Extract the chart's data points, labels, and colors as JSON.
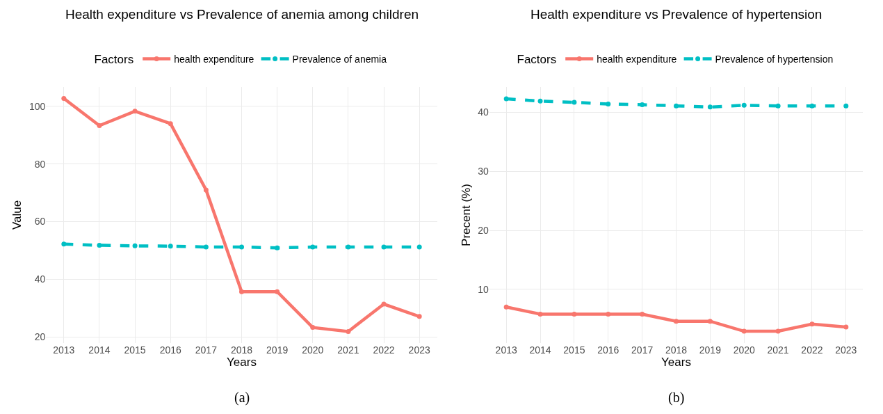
{
  "chart_data": [
    {
      "type": "line",
      "title": "Health expenditure vs Prevalence of anemia among children",
      "xlabel": "Years",
      "ylabel": "Value",
      "legend_title": "Factors",
      "legend": "top",
      "x": [
        2013,
        2014,
        2015,
        2016,
        2017,
        2018,
        2019,
        2020,
        2021,
        2022,
        2023
      ],
      "xlim": [
        2012.5,
        2023.5
      ],
      "xticks": [
        2013,
        2014,
        2015,
        2016,
        2017,
        2018,
        2019,
        2020,
        2021,
        2022,
        2023
      ],
      "ylim": [
        17.9,
        106.7
      ],
      "yticks": [
        20,
        40,
        60,
        80,
        100
      ],
      "grid": true,
      "marker": "circle",
      "series": [
        {
          "name": "health expenditure",
          "color": "#f8766d",
          "line_style": "solid",
          "values": [
            102.7,
            93.3,
            98.3,
            94.0,
            71.0,
            35.7,
            35.7,
            23.3,
            21.9,
            31.4,
            27.1
          ]
        },
        {
          "name": "Prevalence of anemia",
          "color": "#00bfc4",
          "line_style": "dashed",
          "values": [
            52.2,
            51.8,
            51.6,
            51.5,
            51.2,
            51.2,
            50.9,
            51.2,
            51.2,
            51.2,
            51.2
          ]
        }
      ],
      "annotations": [
        "(a)"
      ]
    },
    {
      "type": "line",
      "title": "Health expenditure vs Prevalence of hypertension",
      "xlabel": "Years",
      "ylabel": "Precent (%)",
      "legend_title": "Factors",
      "legend": "top",
      "x": [
        2013,
        2014,
        2015,
        2016,
        2017,
        2018,
        2019,
        2020,
        2021,
        2022,
        2023
      ],
      "xlim": [
        2012.5,
        2023.5
      ],
      "xticks": [
        2013,
        2014,
        2015,
        2016,
        2017,
        2018,
        2019,
        2020,
        2021,
        2022,
        2023
      ],
      "ylim": [
        0.9,
        44.3
      ],
      "yticks": [
        10,
        20,
        30,
        40
      ],
      "grid": true,
      "marker": "circle",
      "series": [
        {
          "name": "health expenditure",
          "color": "#f8766d",
          "line_style": "solid",
          "values": [
            7.0,
            5.8,
            5.8,
            5.8,
            5.8,
            4.6,
            4.6,
            2.9,
            2.9,
            4.1,
            3.6
          ]
        },
        {
          "name": "Prevalence of hypertension",
          "color": "#00bfc4",
          "line_style": "dashed",
          "values": [
            42.3,
            41.9,
            41.7,
            41.4,
            41.3,
            41.1,
            40.9,
            41.2,
            41.1,
            41.1,
            41.1
          ]
        }
      ],
      "annotations": [
        "(b)"
      ]
    }
  ]
}
